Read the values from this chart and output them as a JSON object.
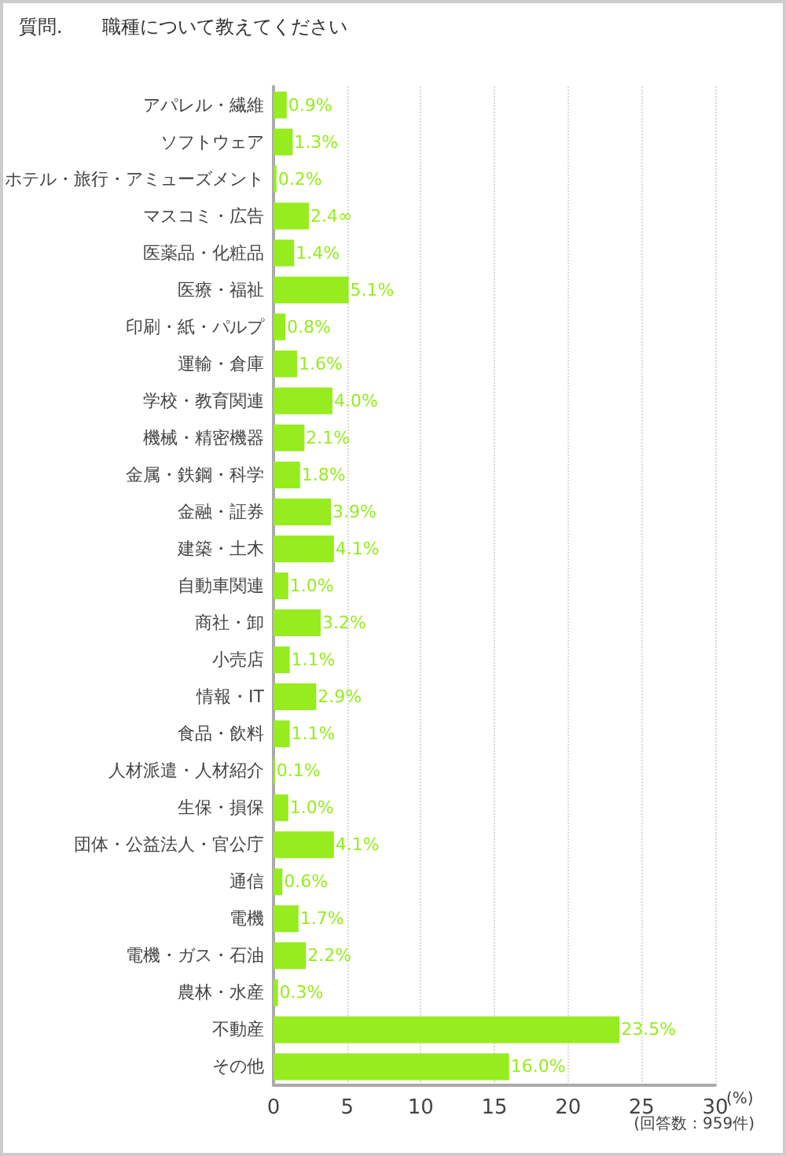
{
  "chart_data": {
    "type": "bar",
    "orientation": "horizontal",
    "title": "質問.",
    "subtitle": "職種について教えてください",
    "xlabel": "(%)",
    "annotations": [
      "(回答数：959件)"
    ],
    "categories": [
      "アパレル・繊維",
      "ソフトウェア",
      "ホテル・旅行・アミューズメント",
      "マスコミ・広告",
      "医薬品・化粧品",
      "医療・福祉",
      "印刷・紙・パルプ",
      "運輸・倉庫",
      "学校・教育関連",
      "機械・精密機器",
      "金属・鉄鋼・科学",
      "金融・証券",
      "建築・土木",
      "自動車関連",
      "商社・卸",
      "小売店",
      "情報・IT",
      "食品・飲料",
      "人材派遣・人材紹介",
      "生保・損保",
      "団体・公益法人・官公庁",
      "通信",
      "電機",
      "電機・ガス・石油",
      "農林・水産",
      "不動産",
      "その他"
    ],
    "values": [
      0.9,
      1.3,
      0.2,
      2.4,
      1.4,
      5.1,
      0.8,
      1.6,
      4.0,
      2.1,
      1.8,
      3.9,
      4.1,
      1.0,
      3.2,
      1.1,
      2.9,
      1.1,
      0.1,
      1.0,
      4.1,
      0.6,
      1.7,
      2.2,
      0.3,
      23.5,
      16.0
    ],
    "value_labels": [
      "0.9%",
      "1.3%",
      "0.2%",
      "2.4∞",
      "1.4%",
      "5.1%",
      "0.8%",
      "1.6%",
      "4.0%",
      "2.1%",
      "1.8%",
      "3.9%",
      "4.1%",
      "1.0%",
      "3.2%",
      "1.1%",
      "2.9%",
      "1.1%",
      "0.1%",
      "1.0%",
      "4.1%",
      "0.6%",
      "1.7%",
      "2.2%",
      "0.3%",
      "23.5%",
      "16.0%"
    ],
    "color": "#96ec1e",
    "xlim": [
      0,
      30
    ],
    "xticks": [
      0,
      5,
      10,
      15,
      20,
      25,
      30
    ],
    "grid": "x"
  }
}
